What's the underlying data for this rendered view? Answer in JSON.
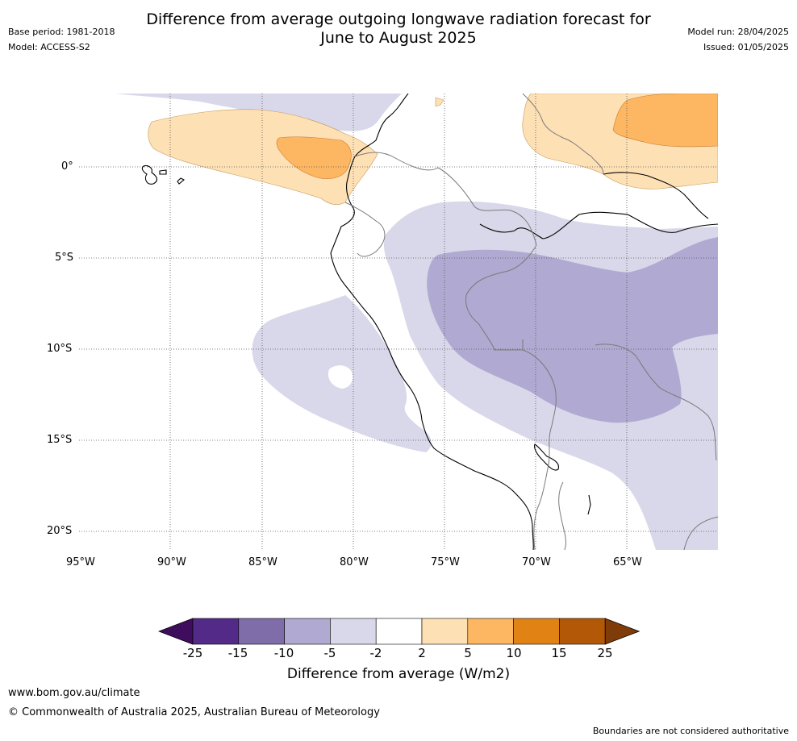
{
  "header": {
    "base_period": "Base period: 1981-2018",
    "model": "Model: ACCESS-S2",
    "title_line1": "Difference from average outgoing longwave radiation forecast for",
    "title_line2": "June to August 2025",
    "model_run": "Model run: 28/04/2025",
    "issued": "Issued: 01/05/2025"
  },
  "map": {
    "lon_labels": [
      "95°W",
      "90°W",
      "85°W",
      "80°W",
      "75°W",
      "70°W",
      "65°W"
    ],
    "lat_labels": [
      "0°",
      "5°S",
      "10°S",
      "15°S",
      "20°S"
    ],
    "lon_values": [
      -95,
      -90,
      -85,
      -80,
      -75,
      -70,
      -65
    ],
    "lat_values": [
      0,
      -5,
      -10,
      -15,
      -20
    ]
  },
  "colorbar": {
    "ticks": [
      "-25",
      "-15",
      "-10",
      "-5",
      "-2",
      "2",
      "5",
      "10",
      "15",
      "25"
    ],
    "colors": [
      "#3f0d5e",
      "#542a89",
      "#7f6da9",
      "#b0a9d1",
      "#d8d8ea",
      "#ffffff",
      "#fee0b5",
      "#fdb762",
      "#e08214",
      "#b35806",
      "#7f3b08"
    ],
    "label": "Difference from average (W/m2)"
  },
  "footer": {
    "url": "www.bom.gov.au/climate",
    "copyright": "© Commonwealth of Australia 2025, Australian Bureau of Meteorology",
    "disclaimer": "Boundaries are not considered authoritative"
  }
}
